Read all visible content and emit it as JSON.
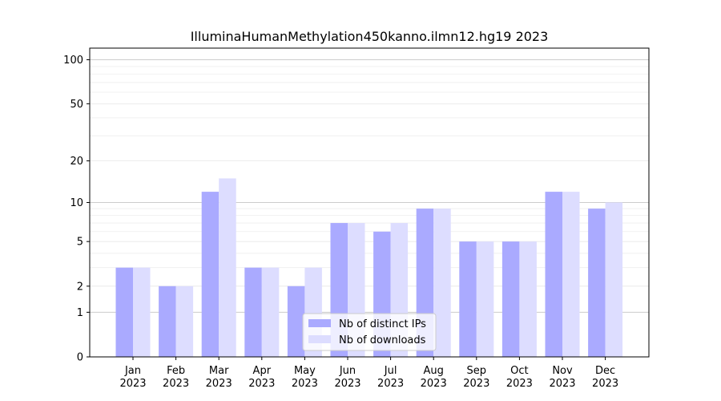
{
  "chart_data": {
    "type": "bar",
    "title": "IlluminaHumanMethylation450kanno.ilmn12.hg19 2023",
    "xlabel": "",
    "ylabel": "",
    "y_scale": "log1p",
    "ylim": [
      0,
      120
    ],
    "y_ticks": [
      0,
      1,
      2,
      5,
      10,
      20,
      50,
      100
    ],
    "grid": "horizontal",
    "legend_position": "bottom-center",
    "categories": [
      [
        "Jan",
        "2023"
      ],
      [
        "Feb",
        "2023"
      ],
      [
        "Mar",
        "2023"
      ],
      [
        "Apr",
        "2023"
      ],
      [
        "May",
        "2023"
      ],
      [
        "Jun",
        "2023"
      ],
      [
        "Jul",
        "2023"
      ],
      [
        "Aug",
        "2023"
      ],
      [
        "Sep",
        "2023"
      ],
      [
        "Oct",
        "2023"
      ],
      [
        "Nov",
        "2023"
      ],
      [
        "Dec",
        "2023"
      ]
    ],
    "series": [
      {
        "name": "Nb of distinct IPs",
        "color": "#aaaaff",
        "values": [
          3,
          2,
          12,
          3,
          2,
          7,
          6,
          9,
          5,
          5,
          12,
          9
        ]
      },
      {
        "name": "Nb of downloads",
        "color": "#ddddff",
        "values": [
          3,
          2,
          15,
          3,
          3,
          7,
          7,
          9,
          5,
          5,
          12,
          10
        ]
      }
    ]
  }
}
